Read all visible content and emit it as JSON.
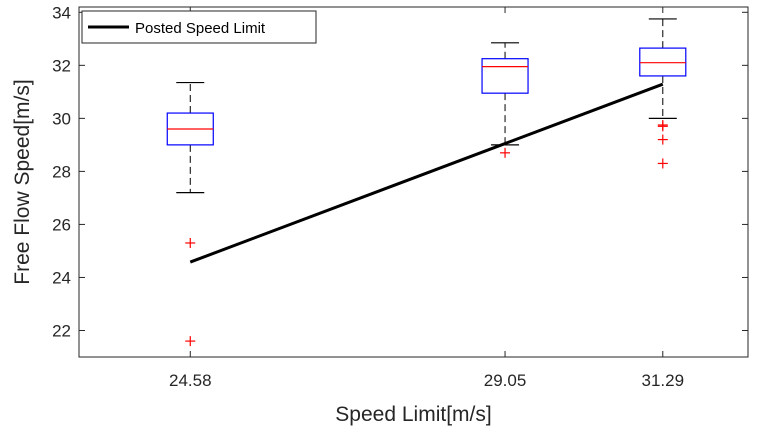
{
  "chart_data": {
    "type": "box",
    "title": "",
    "xlabel": "Speed Limit[m/s]",
    "ylabel": "Free Flow Speed[m/s]",
    "xlim": [
      23.0,
      32.5
    ],
    "ylim": [
      21.0,
      34.2
    ],
    "x_ticks": [
      24.58,
      29.05,
      31.29
    ],
    "x_tick_labels": [
      "24.58",
      "29.05",
      "31.29"
    ],
    "y_ticks": [
      22,
      24,
      26,
      28,
      30,
      32,
      34
    ],
    "y_tick_labels": [
      "22",
      "24",
      "26",
      "28",
      "30",
      "32",
      "34"
    ],
    "grid": false,
    "legend": {
      "position": "top-left",
      "entries": [
        "Posted Speed Limit"
      ]
    },
    "boxes": [
      {
        "x": 24.58,
        "whisker_low": 27.2,
        "q1": 29.0,
        "median": 29.6,
        "q3": 30.2,
        "whisker_high": 31.35,
        "outliers": [
          25.3,
          21.6
        ]
      },
      {
        "x": 29.05,
        "whisker_low": 29.0,
        "q1": 30.95,
        "median": 31.95,
        "q3": 32.25,
        "whisker_high": 32.85,
        "outliers": [
          28.7
        ]
      },
      {
        "x": 31.29,
        "whisker_low": 30.0,
        "q1": 31.6,
        "median": 32.1,
        "q3": 32.65,
        "whisker_high": 33.75,
        "outliers": [
          29.75,
          29.7,
          29.2,
          28.3
        ]
      }
    ],
    "series": [
      {
        "name": "Posted Speed Limit",
        "type": "line",
        "x": [
          24.58,
          29.05,
          31.29
        ],
        "y": [
          24.58,
          29.05,
          31.29
        ]
      }
    ],
    "colors": {
      "box": "#0000ff",
      "median": "#ff0000",
      "outlier": "#ff0000",
      "whisker": "#000000",
      "line": "#000000",
      "axis": "#262626"
    }
  }
}
